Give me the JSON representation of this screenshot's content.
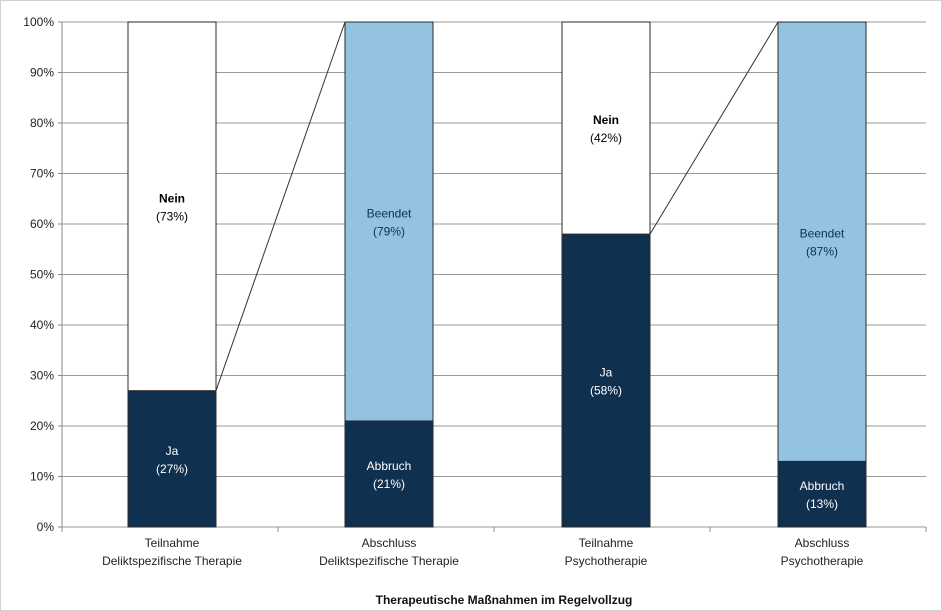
{
  "chart_data": {
    "type": "bar",
    "stacked": true,
    "percent_stacked": true,
    "title": "",
    "xlabel": "Therapeutische Maßnahmen im Regelvollzug",
    "ylabel": "",
    "ylim": [
      0,
      100
    ],
    "yticks": [
      "0%",
      "10%",
      "20%",
      "30%",
      "40%",
      "50%",
      "60%",
      "70%",
      "80%",
      "90%",
      "100%"
    ],
    "grid": true,
    "legend": "none",
    "connector_lines": true,
    "categories": [
      [
        "Teilnahme",
        "Deliktspezifische Therapie"
      ],
      [
        "Abschluss",
        "Deliktspezifische Therapie"
      ],
      [
        "Teilnahme",
        "Psychotherapie"
      ],
      [
        "Abschluss",
        "Psychotherapie"
      ]
    ],
    "bars": [
      {
        "segments": [
          {
            "name": "Ja",
            "value": 27,
            "label": "(27%)",
            "color": "#10304f",
            "text_color": "#ffffff"
          },
          {
            "name": "Nein",
            "value": 73,
            "label": "(73%)",
            "color": "#ffffff",
            "text_color": "#000000",
            "bold": true
          }
        ]
      },
      {
        "segments": [
          {
            "name": "Abbruch",
            "value": 21,
            "label": "(21%)",
            "color": "#10304f",
            "text_color": "#ffffff"
          },
          {
            "name": "Beendet",
            "value": 79,
            "label": "(79%)",
            "color": "#93c3e1",
            "text_color": "#10304f"
          }
        ]
      },
      {
        "segments": [
          {
            "name": "Ja",
            "value": 58,
            "label": "(58%)",
            "color": "#10304f",
            "text_color": "#ffffff"
          },
          {
            "name": "Nein",
            "value": 42,
            "label": "(42%)",
            "color": "#ffffff",
            "text_color": "#000000",
            "bold": true
          }
        ]
      },
      {
        "segments": [
          {
            "name": "Abbruch",
            "value": 13,
            "label": "(13%)",
            "color": "#10304f",
            "text_color": "#ffffff"
          },
          {
            "name": "Beendet",
            "value": 87,
            "label": "(87%)",
            "color": "#93c3e1",
            "text_color": "#10304f"
          }
        ]
      }
    ]
  }
}
